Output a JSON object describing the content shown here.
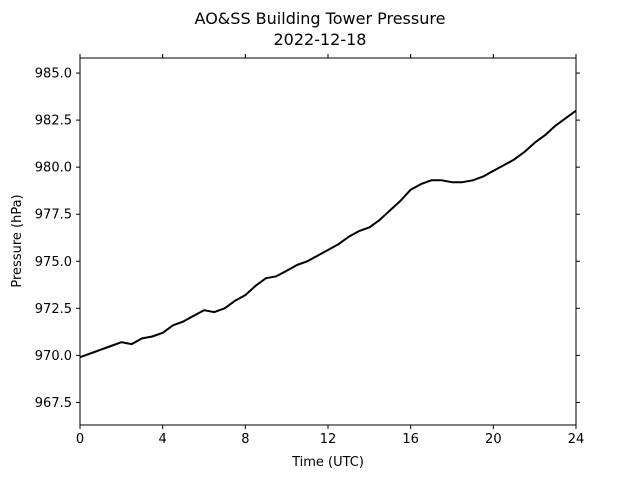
{
  "chart_data": {
    "type": "line",
    "title": "AO&SS Building Tower Pressure",
    "subtitle": "2022-12-18",
    "xlabel": "Time (UTC)",
    "ylabel": "Pressure (hPa)",
    "xlim": [
      0,
      24
    ],
    "ylim": [
      966.3,
      985.8
    ],
    "xticks": [
      0,
      4,
      8,
      12,
      16,
      20,
      24
    ],
    "xtick_labels": [
      "0",
      "4",
      "8",
      "12",
      "16",
      "20",
      "24"
    ],
    "yticks": [
      967.5,
      970.0,
      972.5,
      975.0,
      977.5,
      980.0,
      982.5,
      985.0
    ],
    "ytick_labels": [
      "967.5",
      "970.0",
      "972.5",
      "975.0",
      "977.5",
      "980.0",
      "982.5",
      "985.0"
    ],
    "grid": false,
    "legend": false,
    "colors": {
      "line": "#000000",
      "axes": "#000000",
      "background": "#ffffff"
    },
    "series": [
      {
        "x": [
          0,
          0.5,
          1,
          1.5,
          2,
          2.5,
          3,
          3.5,
          4,
          4.5,
          5,
          5.5,
          6,
          6.5,
          7,
          7.5,
          8,
          8.5,
          9,
          9.5,
          10,
          10.5,
          11,
          11.5,
          12,
          12.5,
          13,
          13.5,
          14,
          14.5,
          15,
          15.5,
          16,
          16.5,
          17,
          17.5,
          18,
          18.5,
          19,
          19.5,
          20,
          20.5,
          21,
          21.5,
          22,
          22.5,
          23,
          23.5,
          24
        ],
        "values": [
          969.9,
          970.1,
          970.3,
          970.5,
          970.7,
          970.6,
          970.9,
          971.0,
          971.2,
          971.6,
          971.8,
          972.1,
          972.4,
          972.3,
          972.5,
          972.9,
          973.2,
          973.7,
          974.1,
          974.2,
          974.5,
          974.8,
          975.0,
          975.3,
          975.6,
          975.9,
          976.3,
          976.6,
          976.8,
          977.2,
          977.7,
          978.2,
          978.8,
          979.1,
          979.3,
          979.3,
          979.2,
          979.2,
          979.3,
          979.5,
          979.8,
          980.1,
          980.4,
          980.8,
          981.3,
          981.7,
          982.2,
          982.6,
          983.0
        ]
      }
    ]
  }
}
